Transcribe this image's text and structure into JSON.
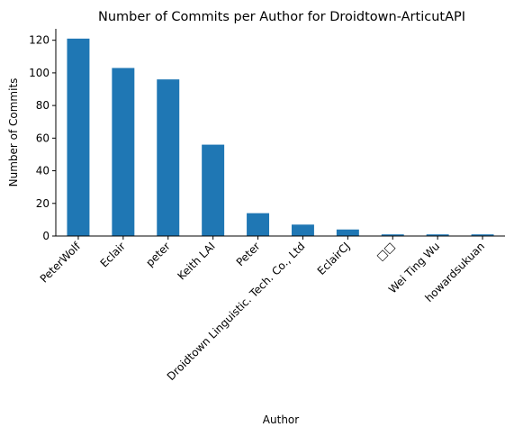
{
  "chart_data": {
    "type": "bar",
    "title": "Number of Commits per Author for Droidtown-ArticutAPI",
    "xlabel": "Author",
    "ylabel": "Number of Commits",
    "categories": [
      "PeterWolf",
      "Eclair",
      "peter",
      "Keith LAI",
      "Peter",
      "Droidtown Linguistic. Tech. Co., Ltd",
      "EclairCJ",
      "□□",
      "Wei Ting Wu",
      "howardsukuan"
    ],
    "values": [
      121,
      103,
      96,
      56,
      14,
      7,
      4,
      1,
      1,
      1
    ],
    "yticks": [
      0,
      20,
      40,
      60,
      80,
      100,
      120
    ],
    "ylim": [
      0,
      127
    ],
    "grid": false,
    "legend": "none",
    "bar_color": "#1f77b4"
  }
}
